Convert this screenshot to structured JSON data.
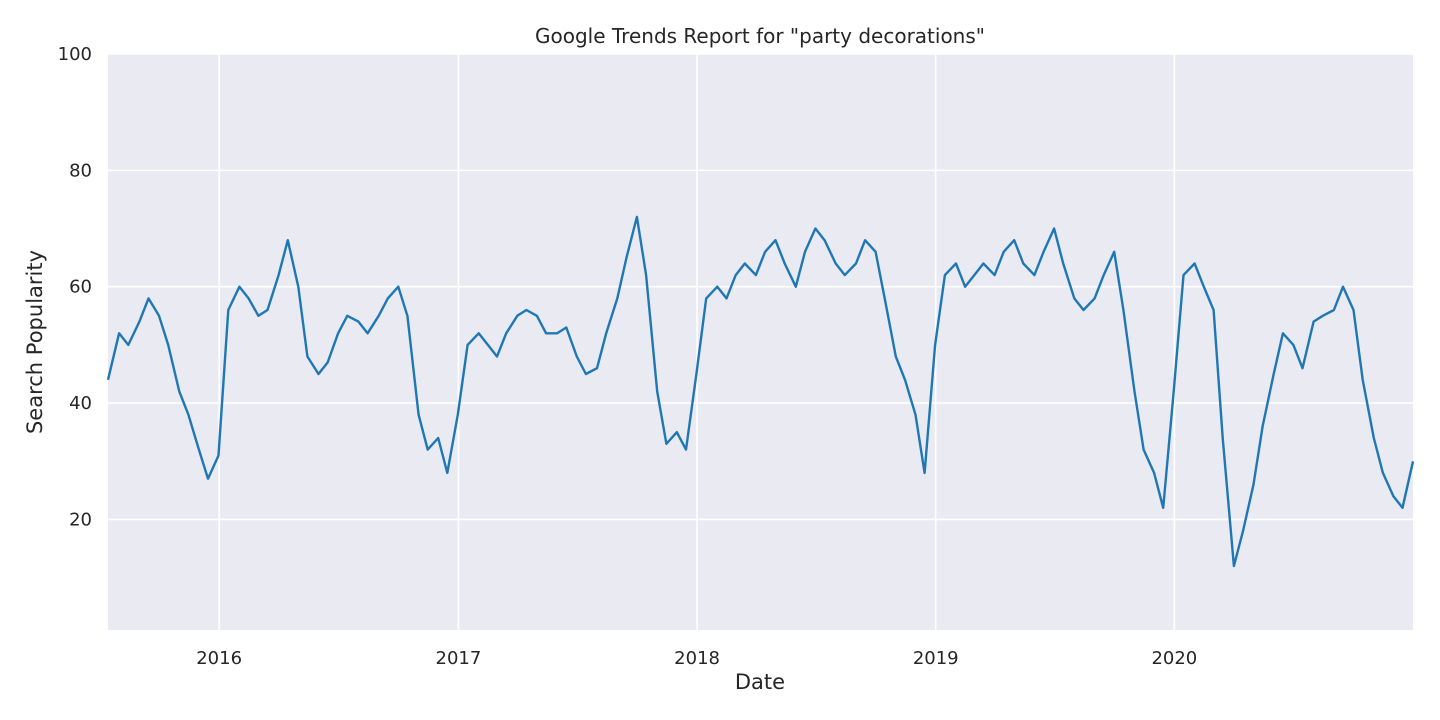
{
  "chart_data": {
    "type": "line",
    "title": "Google Trends Report for \"party decorations\"",
    "xlabel": "Date",
    "ylabel": "Search Popularity",
    "x_ticks": [
      "2016",
      "2017",
      "2018",
      "2019",
      "2020"
    ],
    "y_ticks": [
      "20",
      "40",
      "60",
      "80",
      "100"
    ],
    "xlim": [
      "2015-07-15",
      "2020-12-31"
    ],
    "ylim": [
      1,
      100
    ],
    "grid": true,
    "background": "#eaeaf2",
    "series": [
      {
        "color": "#1f77b4",
        "points": [
          [
            "2015-07-15",
            44
          ],
          [
            "2015-08-01",
            52
          ],
          [
            "2015-08-15",
            50
          ],
          [
            "2015-09-01",
            54
          ],
          [
            "2015-09-15",
            58
          ],
          [
            "2015-10-01",
            55
          ],
          [
            "2015-10-15",
            50
          ],
          [
            "2015-11-01",
            42
          ],
          [
            "2015-11-15",
            38
          ],
          [
            "2015-12-01",
            32
          ],
          [
            "2015-12-15",
            27
          ],
          [
            "2015-12-31",
            31
          ],
          [
            "2016-01-15",
            56
          ],
          [
            "2016-02-01",
            60
          ],
          [
            "2016-02-15",
            58
          ],
          [
            "2016-03-01",
            55
          ],
          [
            "2016-03-15",
            56
          ],
          [
            "2016-04-01",
            62
          ],
          [
            "2016-04-15",
            68
          ],
          [
            "2016-05-01",
            60
          ],
          [
            "2016-05-15",
            48
          ],
          [
            "2016-06-01",
            45
          ],
          [
            "2016-06-15",
            47
          ],
          [
            "2016-07-01",
            52
          ],
          [
            "2016-07-15",
            55
          ],
          [
            "2016-08-01",
            54
          ],
          [
            "2016-08-15",
            52
          ],
          [
            "2016-09-01",
            55
          ],
          [
            "2016-09-15",
            58
          ],
          [
            "2016-10-01",
            60
          ],
          [
            "2016-10-15",
            55
          ],
          [
            "2016-11-01",
            38
          ],
          [
            "2016-11-15",
            32
          ],
          [
            "2016-12-01",
            34
          ],
          [
            "2016-12-15",
            28
          ],
          [
            "2016-12-31",
            38
          ],
          [
            "2017-01-15",
            50
          ],
          [
            "2017-02-01",
            52
          ],
          [
            "2017-02-15",
            50
          ],
          [
            "2017-03-01",
            48
          ],
          [
            "2017-03-15",
            52
          ],
          [
            "2017-04-01",
            55
          ],
          [
            "2017-04-15",
            56
          ],
          [
            "2017-05-01",
            55
          ],
          [
            "2017-05-15",
            52
          ],
          [
            "2017-06-01",
            52
          ],
          [
            "2017-06-15",
            53
          ],
          [
            "2017-07-01",
            48
          ],
          [
            "2017-07-15",
            45
          ],
          [
            "2017-08-01",
            46
          ],
          [
            "2017-08-15",
            52
          ],
          [
            "2017-09-01",
            58
          ],
          [
            "2017-09-15",
            65
          ],
          [
            "2017-10-01",
            72
          ],
          [
            "2017-10-15",
            62
          ],
          [
            "2017-11-01",
            42
          ],
          [
            "2017-11-15",
            33
          ],
          [
            "2017-12-01",
            35
          ],
          [
            "2017-12-15",
            32
          ],
          [
            "2017-12-31",
            45
          ],
          [
            "2018-01-15",
            58
          ],
          [
            "2018-02-01",
            60
          ],
          [
            "2018-02-15",
            58
          ],
          [
            "2018-03-01",
            62
          ],
          [
            "2018-03-15",
            64
          ],
          [
            "2018-04-01",
            62
          ],
          [
            "2018-04-15",
            66
          ],
          [
            "2018-05-01",
            68
          ],
          [
            "2018-05-15",
            64
          ],
          [
            "2018-06-01",
            60
          ],
          [
            "2018-06-15",
            66
          ],
          [
            "2018-07-01",
            70
          ],
          [
            "2018-07-15",
            68
          ],
          [
            "2018-08-01",
            64
          ],
          [
            "2018-08-15",
            62
          ],
          [
            "2018-09-01",
            64
          ],
          [
            "2018-09-15",
            68
          ],
          [
            "2018-10-01",
            66
          ],
          [
            "2018-10-15",
            58
          ],
          [
            "2018-11-01",
            48
          ],
          [
            "2018-11-15",
            44
          ],
          [
            "2018-12-01",
            38
          ],
          [
            "2018-12-15",
            28
          ],
          [
            "2018-12-31",
            50
          ],
          [
            "2019-01-15",
            62
          ],
          [
            "2019-02-01",
            64
          ],
          [
            "2019-02-15",
            60
          ],
          [
            "2019-03-01",
            62
          ],
          [
            "2019-03-15",
            64
          ],
          [
            "2019-04-01",
            62
          ],
          [
            "2019-04-15",
            66
          ],
          [
            "2019-05-01",
            68
          ],
          [
            "2019-05-15",
            64
          ],
          [
            "2019-06-01",
            62
          ],
          [
            "2019-06-15",
            66
          ],
          [
            "2019-07-01",
            70
          ],
          [
            "2019-07-15",
            64
          ],
          [
            "2019-08-01",
            58
          ],
          [
            "2019-08-15",
            56
          ],
          [
            "2019-09-01",
            58
          ],
          [
            "2019-09-15",
            62
          ],
          [
            "2019-10-01",
            66
          ],
          [
            "2019-10-15",
            56
          ],
          [
            "2019-11-01",
            42
          ],
          [
            "2019-11-15",
            32
          ],
          [
            "2019-12-01",
            28
          ],
          [
            "2019-12-15",
            22
          ],
          [
            "2019-12-31",
            42
          ],
          [
            "2020-01-15",
            62
          ],
          [
            "2020-02-01",
            64
          ],
          [
            "2020-02-15",
            60
          ],
          [
            "2020-03-01",
            56
          ],
          [
            "2020-03-15",
            34
          ],
          [
            "2020-04-01",
            12
          ],
          [
            "2020-04-15",
            18
          ],
          [
            "2020-05-01",
            26
          ],
          [
            "2020-05-15",
            36
          ],
          [
            "2020-06-01",
            45
          ],
          [
            "2020-06-15",
            52
          ],
          [
            "2020-07-01",
            50
          ],
          [
            "2020-07-15",
            46
          ],
          [
            "2020-08-01",
            54
          ],
          [
            "2020-08-15",
            55
          ],
          [
            "2020-09-01",
            56
          ],
          [
            "2020-09-15",
            60
          ],
          [
            "2020-10-01",
            56
          ],
          [
            "2020-10-15",
            44
          ],
          [
            "2020-11-01",
            34
          ],
          [
            "2020-11-15",
            28
          ],
          [
            "2020-12-01",
            24
          ],
          [
            "2020-12-15",
            22
          ],
          [
            "2020-12-31",
            30
          ]
        ]
      }
    ]
  }
}
